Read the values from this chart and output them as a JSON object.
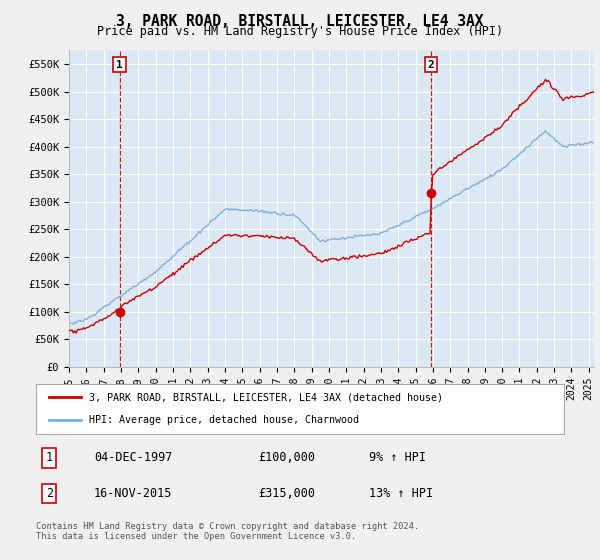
{
  "title": "3, PARK ROAD, BIRSTALL, LEICESTER, LE4 3AX",
  "subtitle": "Price paid vs. HM Land Registry's House Price Index (HPI)",
  "ylabel_ticks": [
    "£0",
    "£50K",
    "£100K",
    "£150K",
    "£200K",
    "£250K",
    "£300K",
    "£350K",
    "£400K",
    "£450K",
    "£500K",
    "£550K"
  ],
  "ytick_values": [
    0,
    50000,
    100000,
    150000,
    200000,
    250000,
    300000,
    350000,
    400000,
    450000,
    500000,
    550000
  ],
  "ylim": [
    0,
    575000
  ],
  "xlim_start": 1995.0,
  "xlim_end": 2025.3,
  "sale1_year": 1997.92,
  "sale1_price": 100000,
  "sale2_year": 2015.88,
  "sale2_price": 315000,
  "legend_line1": "3, PARK ROAD, BIRSTALL, LEICESTER, LE4 3AX (detached house)",
  "legend_line2": "HPI: Average price, detached house, Charnwood",
  "table_row1": [
    "1",
    "04-DEC-1997",
    "£100,000",
    "9% ↑ HPI"
  ],
  "table_row2": [
    "2",
    "16-NOV-2015",
    "£315,000",
    "13% ↑ HPI"
  ],
  "footer": "Contains HM Land Registry data © Crown copyright and database right 2024.\nThis data is licensed under the Open Government Licence v3.0.",
  "line_color_red": "#cc0000",
  "line_color_blue": "#7fb0d8",
  "marker_color": "#cc0000",
  "dashed_line_color": "#cc0000",
  "background_color": "#f0f0f0",
  "plot_bg_color": "#dce9f5",
  "grid_color": "#ffffff"
}
